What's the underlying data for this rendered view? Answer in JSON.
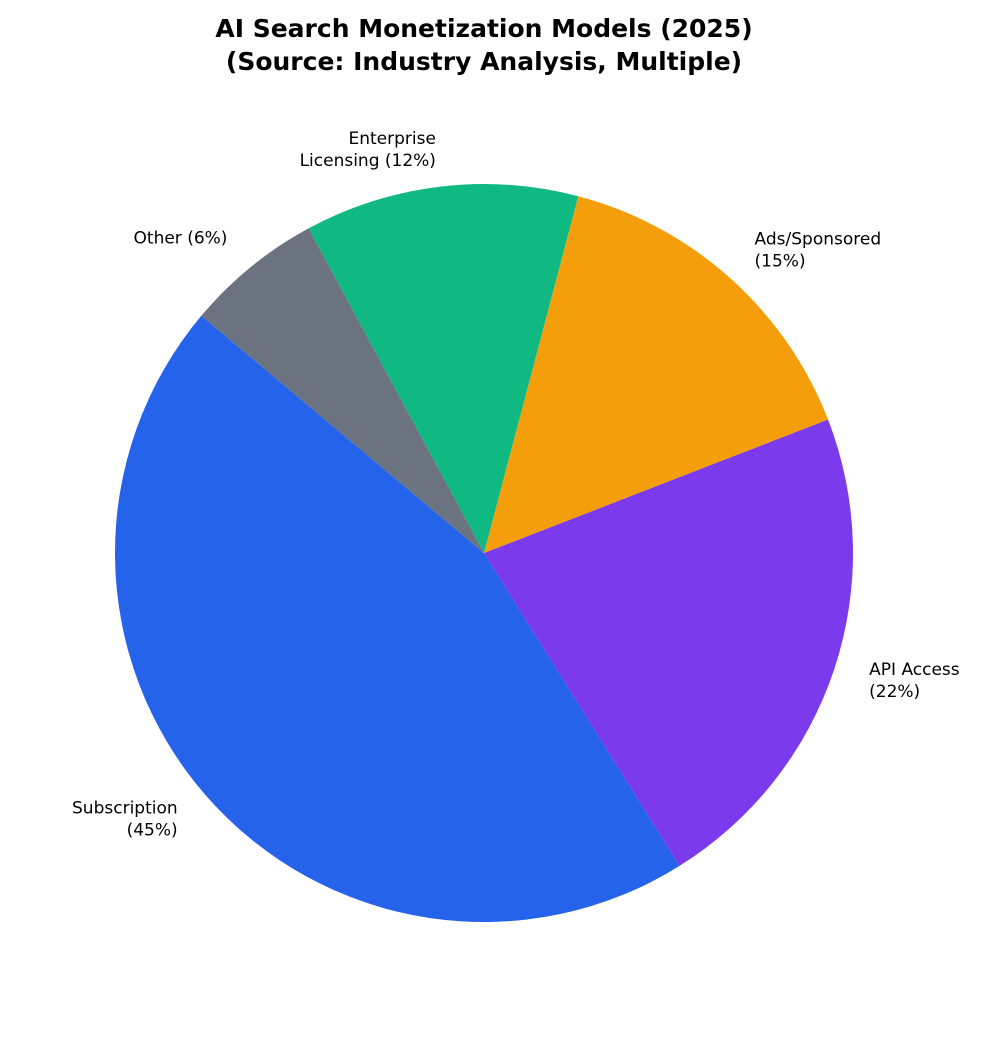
{
  "chart_data": {
    "type": "pie",
    "title": "AI Search Monetization Models (2025)\n(Source: Industry Analysis, Multiple)",
    "categories": [
      "Subscription\n(45%)",
      "API Access\n(22%)",
      "Ads/Sponsored\n(15%)",
      "Enterprise\nLicensing (12%)",
      "Other (6%)"
    ],
    "values": [
      45,
      22,
      15,
      12,
      6
    ],
    "colors": [
      "#2563eb",
      "#7c3aed",
      "#f59e0b",
      "#10b981",
      "#6b7280"
    ],
    "start_angle": 140,
    "counterclockwise": true
  }
}
